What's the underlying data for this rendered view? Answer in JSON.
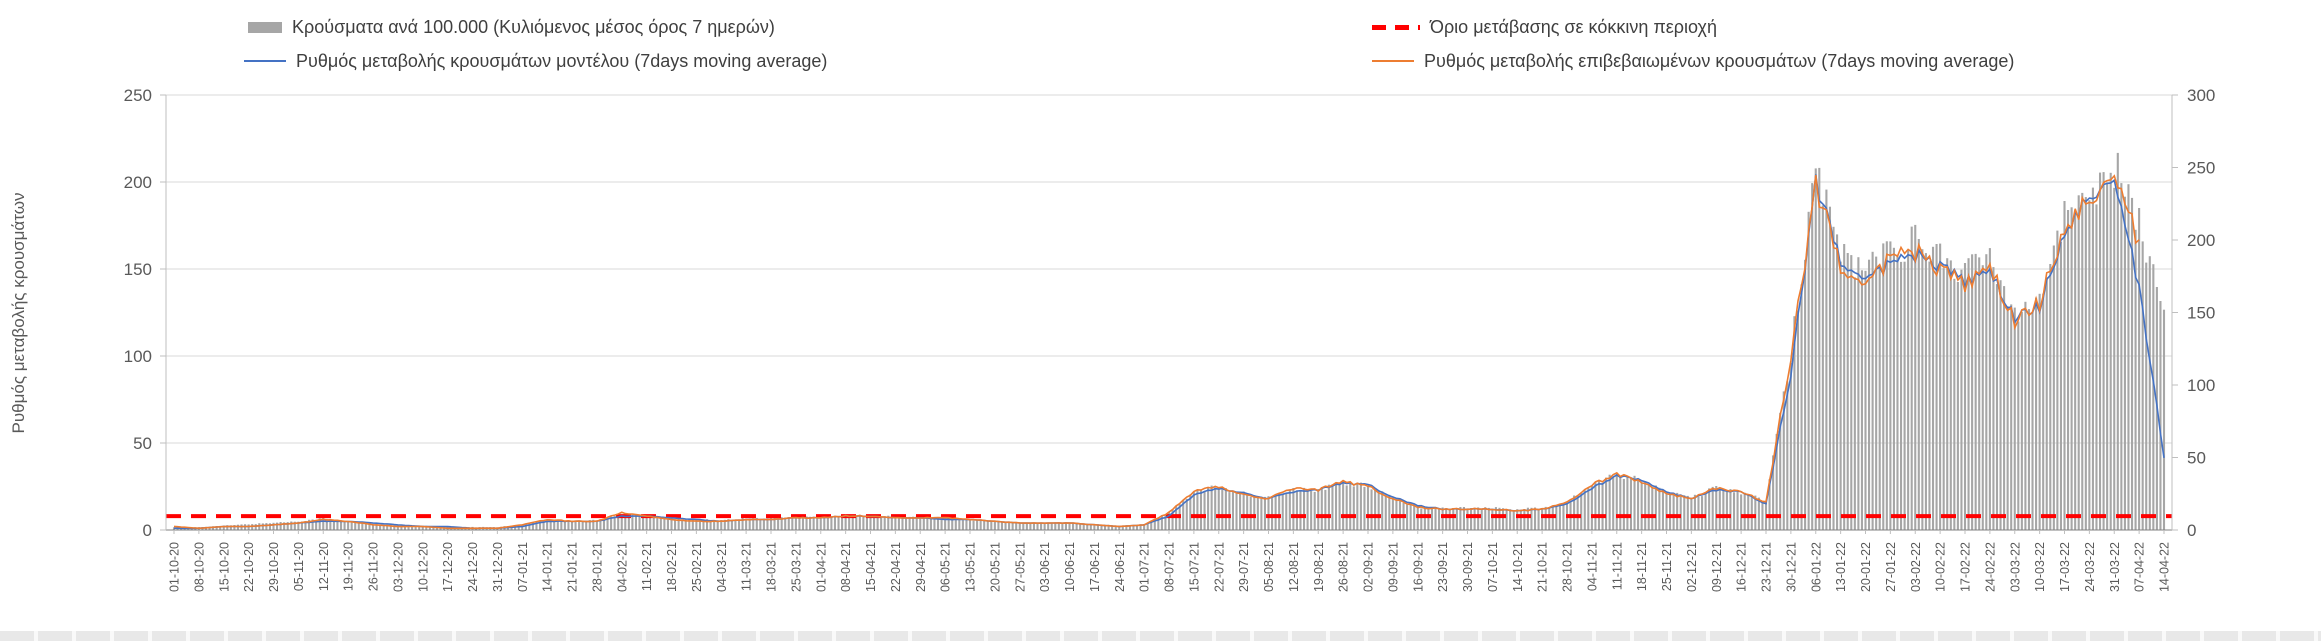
{
  "legend": {
    "bars": "Κρούσματα ανά 100.000 (Κυλιόμενος μέσος όρος 7 ημερών)",
    "threshold": "Όριο μετάβασης σε κόκκινη περιοχή",
    "model": "Ρυθμός μεταβολής κρουσμάτων μοντέλου (7days moving average)",
    "confirmed": "Ρυθμός μεταβολής επιβεβαιωμένων κρουσμάτων (7days moving average)"
  },
  "axes": {
    "left_title": "Ρυθμός μεταβολής κρουσμάτων",
    "left_ticks": [
      0,
      50,
      100,
      150,
      200,
      250
    ],
    "right_ticks": [
      0,
      50,
      100,
      150,
      200,
      250,
      300
    ],
    "left_range": [
      0,
      250
    ],
    "right_range": [
      0,
      300
    ]
  },
  "colors": {
    "bars": "#a6a6a6",
    "model": "#4472c4",
    "confirmed": "#ed7d31",
    "threshold": "#ff0000",
    "grid": "#d9d9d9",
    "axis": "#bfbfbf",
    "text": "#595959"
  },
  "chart_data": {
    "type": "combo",
    "threshold_value": 8,
    "note": "Bars plotted on right axis (0-300); lines on left axis (0-250). Red dashed horizontal threshold at 8.",
    "categories": [
      "01-10-20",
      "08-10-20",
      "15-10-20",
      "22-10-20",
      "29-10-20",
      "05-11-20",
      "12-11-20",
      "19-11-20",
      "26-11-20",
      "03-12-20",
      "10-12-20",
      "17-12-20",
      "24-12-20",
      "31-12-20",
      "07-01-21",
      "14-01-21",
      "21-01-21",
      "28-01-21",
      "04-02-21",
      "11-02-21",
      "18-02-21",
      "25-02-21",
      "04-03-21",
      "11-03-21",
      "18-03-21",
      "25-03-21",
      "01-04-21",
      "08-04-21",
      "15-04-21",
      "22-04-21",
      "29-04-21",
      "06-05-21",
      "13-05-21",
      "20-05-21",
      "27-05-21",
      "03-06-21",
      "10-06-21",
      "17-06-21",
      "24-06-21",
      "01-07-21",
      "08-07-21",
      "15-07-21",
      "22-07-21",
      "29-07-21",
      "05-08-21",
      "12-08-21",
      "19-08-21",
      "26-08-21",
      "02-09-21",
      "09-09-21",
      "16-09-21",
      "23-09-21",
      "30-09-21",
      "07-10-21",
      "14-10-21",
      "21-10-21",
      "28-10-21",
      "04-11-21",
      "11-11-21",
      "18-11-21",
      "25-11-21",
      "02-12-21",
      "09-12-21",
      "16-12-21",
      "23-12-21",
      "30-12-21",
      "06-01-22",
      "13-01-22",
      "20-01-22",
      "27-01-22",
      "03-02-22",
      "10-02-22",
      "17-02-22",
      "24-02-22",
      "03-03-22",
      "10-03-22",
      "17-03-22",
      "24-03-22",
      "31-03-22",
      "07-04-22",
      "14-04-22"
    ],
    "series": [
      {
        "name": "Κρούσματα ανά 100.000 (Κυλιόμενος μέσος όρος 7 ημερών)",
        "type": "bar",
        "axis": "right",
        "values": [
          2,
          2,
          3,
          4,
          5,
          6,
          8,
          6,
          4,
          3,
          3,
          2,
          2,
          2,
          4,
          7,
          6,
          7,
          11,
          10,
          8,
          7,
          7,
          8,
          8,
          9,
          9,
          10,
          10,
          9,
          9,
          8,
          7,
          6,
          5,
          5,
          5,
          4,
          3,
          4,
          12,
          26,
          30,
          25,
          22,
          28,
          27,
          33,
          30,
          22,
          16,
          15,
          15,
          15,
          14,
          15,
          19,
          31,
          38,
          34,
          26,
          22,
          29,
          26,
          20,
          120,
          255,
          190,
          180,
          195,
          200,
          190,
          178,
          188,
          152,
          162,
          215,
          235,
          252,
          210,
          160
        ]
      },
      {
        "name": "Ρυθμός μεταβολής κρουσμάτων μοντέλου (7days moving average)",
        "type": "line",
        "axis": "left",
        "values": [
          1,
          1,
          2,
          2,
          3,
          4,
          5,
          5,
          4,
          3,
          2,
          2,
          1,
          1,
          2,
          5,
          5,
          5,
          8,
          8,
          7,
          6,
          5,
          6,
          6,
          7,
          7,
          8,
          8,
          7,
          7,
          6,
          6,
          5,
          4,
          4,
          4,
          3,
          2,
          3,
          8,
          20,
          24,
          21,
          18,
          22,
          23,
          27,
          26,
          19,
          14,
          12,
          12,
          12,
          11,
          12,
          15,
          24,
          31,
          29,
          22,
          18,
          23,
          22,
          15,
          90,
          200,
          155,
          147,
          152,
          158,
          152,
          142,
          148,
          122,
          128,
          172,
          192,
          202,
          140,
          42
        ]
      },
      {
        "name": "Ρυθμός μεταβολής επιβεβαιωμένων κρουσμάτων (7days moving average)",
        "type": "line",
        "axis": "left",
        "values": [
          2,
          1,
          2,
          2,
          3,
          4,
          6,
          5,
          3,
          2,
          2,
          1,
          1,
          1,
          3,
          6,
          5,
          5,
          10,
          8,
          6,
          5,
          5,
          6,
          6,
          7,
          7,
          8,
          8,
          7,
          7,
          7,
          6,
          5,
          4,
          4,
          4,
          3,
          2,
          3,
          10,
          22,
          25,
          20,
          18,
          24,
          23,
          28,
          25,
          18,
          13,
          12,
          12,
          12,
          11,
          12,
          16,
          26,
          32,
          28,
          21,
          18,
          24,
          22,
          16,
          100,
          198,
          152,
          145,
          155,
          160,
          150,
          140,
          150,
          120,
          130,
          175,
          190,
          205,
          165,
          null
        ]
      }
    ],
    "xlabel": "",
    "ylabel_left": "Ρυθμός μεταβολής κρουσμάτων",
    "legend_position": "top",
    "grid": true
  }
}
